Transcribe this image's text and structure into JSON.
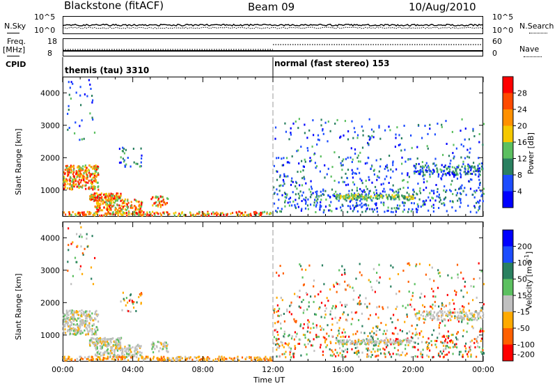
{
  "header": {
    "station": "Blackstone (fitACF)",
    "beam": "Beam 09",
    "date": "10/Aug/2010"
  },
  "noise_panel": {
    "left_label": "N.Sky",
    "right_label": "N.Search",
    "left_ticks": [
      "10^5",
      "10^0"
    ],
    "right_ticks": [
      "10^5",
      "10^0"
    ]
  },
  "freq_panel": {
    "left_label_top": "Freq.",
    "left_label_unit": "[MHz]",
    "right_label": "Nave",
    "left_ticks": [
      "18",
      "8"
    ],
    "right_ticks": [
      "60",
      "0"
    ]
  },
  "cpid": {
    "label": "CPID",
    "modes": [
      {
        "name": "themis (tau) 3310",
        "start_hour": 0
      },
      {
        "name": "normal (fast stereo) 153",
        "start_hour": 12
      }
    ]
  },
  "chart_data": [
    {
      "type": "heatmap",
      "quantity": "Power",
      "ylabel": "Slant Range [km]",
      "ylim": [
        180,
        4500
      ],
      "yticks": [
        "1000",
        "2000",
        "3000",
        "4000"
      ],
      "xlim": [
        0,
        24
      ],
      "colorbar_label": "Power [dB]",
      "colorbar_ticks": [
        "4",
        "8",
        "12",
        "16",
        "20",
        "24",
        "28"
      ],
      "colors": [
        "#0000ff",
        "#1c4cff",
        "#2a8060",
        "#5cc060",
        "#f5c800",
        "#ff9000",
        "#ff4a00",
        "#ff0000"
      ],
      "features": [
        {
          "hours": [
            0.0,
            2.0
          ],
          "range": [
            1000,
            1800
          ],
          "level": "high"
        },
        {
          "hours": [
            1.5,
            4.5
          ],
          "range": [
            300,
            900
          ],
          "level": "high"
        },
        {
          "hours": [
            12.0,
            24.0
          ],
          "range": [
            600,
            2000
          ],
          "level": "low"
        }
      ]
    },
    {
      "type": "heatmap",
      "quantity": "Velocity",
      "ylabel": "Slant Range [km]",
      "ylim": [
        180,
        4500
      ],
      "yticks": [
        "1000",
        "2000",
        "3000",
        "4000"
      ],
      "xlim": [
        0,
        24
      ],
      "xticks": [
        "00:00",
        "04:00",
        "08:00",
        "12:00",
        "16:00",
        "20:00",
        "00:00"
      ],
      "xlabel": "Time UT",
      "colorbar_label": "Velocity [m s",
      "colorbar_label_sup": "-1",
      "colorbar_label_end": "]",
      "colorbar_ticks": [
        "200",
        "100",
        "50",
        "15",
        "-15",
        "-50",
        "-100",
        "-200"
      ],
      "colors": [
        "#0000ff",
        "#1c4cff",
        "#2a8060",
        "#5cc060",
        "#c0c0c0",
        "#ffaa00",
        "#ff6000",
        "#ff0000"
      ]
    }
  ]
}
